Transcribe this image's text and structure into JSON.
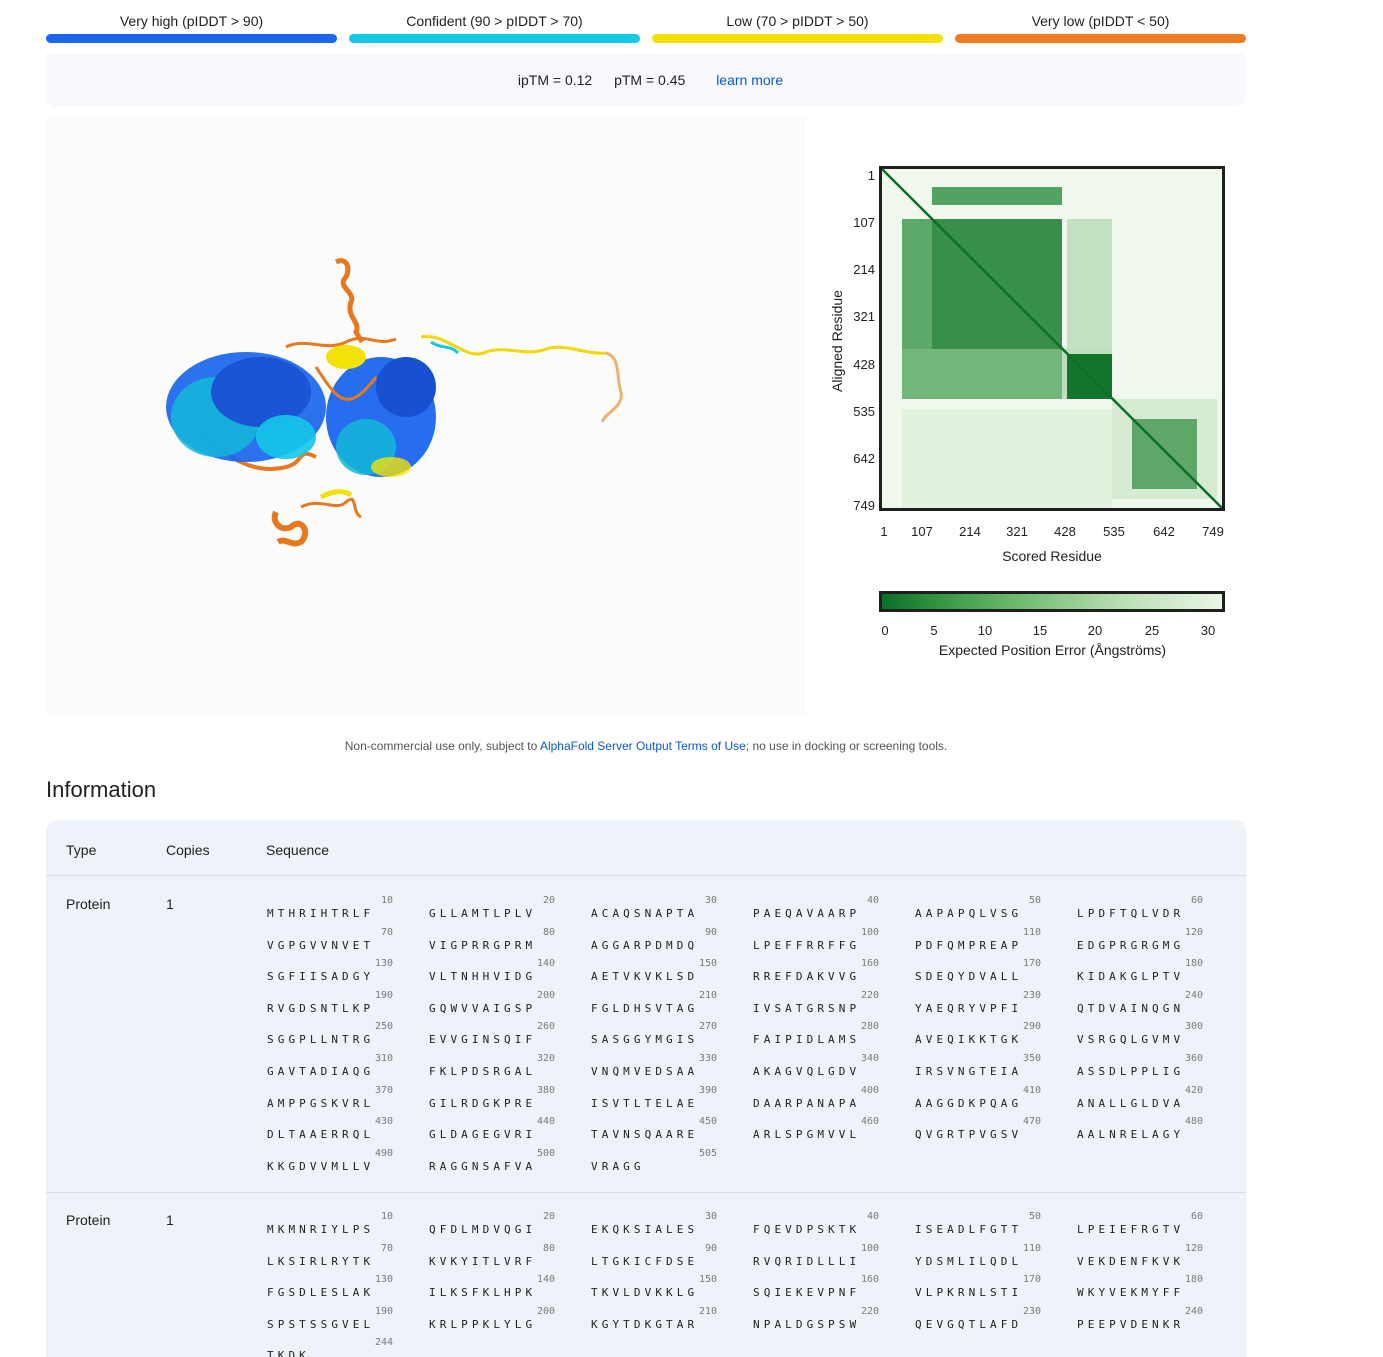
{
  "legend": [
    {
      "label": "Very high (pIDDT > 90)",
      "color": "#1a66ee"
    },
    {
      "label": "Confident (90 > pIDDT > 70)",
      "color": "#14c8e8"
    },
    {
      "label": "Low (70 > pIDDT > 50)",
      "color": "#f2e207"
    },
    {
      "label": "Very low (pIDDT < 50)",
      "color": "#ef7b22"
    }
  ],
  "metrics": {
    "iptm": "ipTM = 0.12",
    "ptm": "pTM = 0.45",
    "learn_more": "learn more"
  },
  "pae": {
    "y_label": "Aligned Residue",
    "x_label": "Scored Residue",
    "ticks": [
      "1",
      "107",
      "214",
      "321",
      "428",
      "535",
      "642",
      "749"
    ],
    "colorbar_ticks": [
      "0",
      "5",
      "10",
      "15",
      "20",
      "25",
      "30"
    ],
    "colorbar_label": "Expected Position Error (Ångströms)"
  },
  "notice": {
    "prefix": "Non-commercial use only, subject to ",
    "link": "AlphaFold Server Output Terms of Use",
    "suffix": "; no use in docking or screening tools."
  },
  "info_title": "Information",
  "table": {
    "headers": {
      "type": "Type",
      "copies": "Copies",
      "sequence": "Sequence"
    },
    "rows": [
      {
        "type": "Protein",
        "copies": "1",
        "blocks": [
          [
            "10",
            "MTHRIHTRLF"
          ],
          [
            "20",
            "GLLAMTLPLV"
          ],
          [
            "30",
            "ACAQSNAPTA"
          ],
          [
            "40",
            "PAEQAVAARP"
          ],
          [
            "50",
            "AAPAPQLVSG"
          ],
          [
            "60",
            "LPDFTQLVDR"
          ],
          [
            "70",
            "VGPGVVNVET"
          ],
          [
            "80",
            "VIGPRRGPRM"
          ],
          [
            "90",
            "AGGARPDMDQ"
          ],
          [
            "100",
            "LPEFFRRFFG"
          ],
          [
            "110",
            "PDFQMPREAP"
          ],
          [
            "120",
            "EDGPRGRGMG"
          ],
          [
            "130",
            "SGFIISADGY"
          ],
          [
            "140",
            "VLTNHHVIDG"
          ],
          [
            "150",
            "AETVKVKLSD"
          ],
          [
            "160",
            "RREFDAKVVG"
          ],
          [
            "170",
            "SDEQYDVALL"
          ],
          [
            "180",
            "KIDAKGLPTV"
          ],
          [
            "190",
            "RVGDSNTLKP"
          ],
          [
            "200",
            "GQWVVAIGSP"
          ],
          [
            "210",
            "FGLDHSVTAG"
          ],
          [
            "220",
            "IVSATGRSNP"
          ],
          [
            "230",
            "YAEQRYVPFI"
          ],
          [
            "240",
            "QTDVAINQGN"
          ],
          [
            "250",
            "SGGPLLNTRG"
          ],
          [
            "260",
            "EVVGINSQIF"
          ],
          [
            "270",
            "SASGGYMGIS"
          ],
          [
            "280",
            "FAIPIDLAMS"
          ],
          [
            "290",
            "AVEQIKKTGK"
          ],
          [
            "300",
            "VSRGQLGVMV"
          ],
          [
            "310",
            "GAVTADIAQG"
          ],
          [
            "320",
            "FKLPDSRGAL"
          ],
          [
            "330",
            "VNQMVEDSAA"
          ],
          [
            "340",
            "AKAGVQLGDV"
          ],
          [
            "350",
            "IRSVNGTEIA"
          ],
          [
            "360",
            "ASSDLPPLIG"
          ],
          [
            "370",
            "AMPPGSKVRL"
          ],
          [
            "380",
            "GILRDGKPRE"
          ],
          [
            "390",
            "ISVTLTELAE"
          ],
          [
            "400",
            "DAARPANAPA"
          ],
          [
            "410",
            "AAGGDKPQAG"
          ],
          [
            "420",
            "ANALLGLDVA"
          ],
          [
            "430",
            "DLTAAERRQL"
          ],
          [
            "440",
            "GLDAGEGVRI"
          ],
          [
            "450",
            "TAVNSQAARE"
          ],
          [
            "460",
            "ARLSPGMVVL"
          ],
          [
            "470",
            "QVGRTPVGSV"
          ],
          [
            "480",
            "AALNRELAGY"
          ],
          [
            "490",
            "KKGDVVMLLV"
          ],
          [
            "500",
            "RAGGNSAFVA"
          ],
          [
            "505",
            "VRAGG"
          ]
        ]
      },
      {
        "type": "Protein",
        "copies": "1",
        "blocks": [
          [
            "10",
            "MKMNRIYLPS"
          ],
          [
            "20",
            "QFDLMDVQGI"
          ],
          [
            "30",
            "EKQKSIALES"
          ],
          [
            "40",
            "FQEVDPSKTK"
          ],
          [
            "50",
            "ISEADLFGTT"
          ],
          [
            "60",
            "LPEIEFRGTV"
          ],
          [
            "70",
            "LKSIRLRYTK"
          ],
          [
            "80",
            "KVKYITLVRF"
          ],
          [
            "90",
            "LTGKICFDSE"
          ],
          [
            "100",
            "RVQRIDLLLI"
          ],
          [
            "110",
            "YDSMLILQDL"
          ],
          [
            "120",
            "VEKDENFKVK"
          ],
          [
            "130",
            "FGSDLESLAK"
          ],
          [
            "140",
            "ILKSFKLHPK"
          ],
          [
            "150",
            "TKVLDVKKLG"
          ],
          [
            "160",
            "SQIEKEVPNF"
          ],
          [
            "170",
            "VLPKRNLSTI"
          ],
          [
            "180",
            "WKYVEKMYFF"
          ],
          [
            "190",
            "SPSTSSGVEL"
          ],
          [
            "200",
            "KRLPPKLYLG"
          ],
          [
            "210",
            "KGYTDKGTAR"
          ],
          [
            "220",
            "NPALDGSPSW"
          ],
          [
            "230",
            "QEVGQTLAFD"
          ],
          [
            "240",
            "PEEPVDENKR"
          ],
          [
            "244",
            "TKDK"
          ]
        ]
      }
    ]
  }
}
